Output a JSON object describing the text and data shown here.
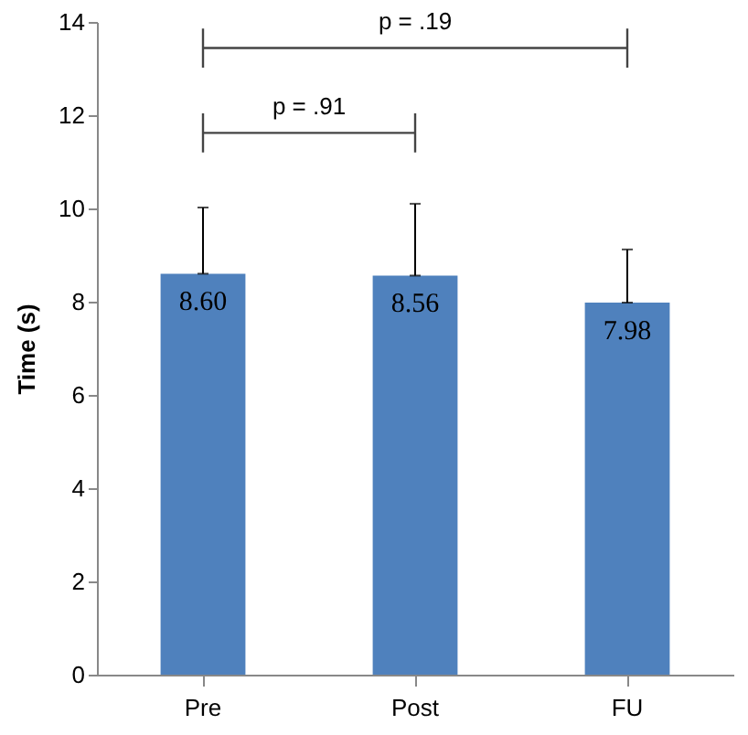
{
  "chart_data": {
    "type": "bar",
    "ylabel": "Time (s)",
    "categories": [
      "Pre",
      "Post",
      "FU"
    ],
    "values": [
      8.6,
      8.56,
      7.98
    ],
    "value_labels": [
      "8.60",
      "8.56",
      "7.98"
    ],
    "errors": [
      [
        8.6,
        10.02
      ],
      [
        8.56,
        10.1
      ],
      [
        7.98,
        9.12
      ]
    ],
    "color": "#4f81bd",
    "ylim": [
      0,
      14
    ],
    "yticks": [
      0,
      2,
      4,
      6,
      8,
      10,
      12,
      14
    ],
    "grid": false,
    "annotations": [
      "p = .91",
      "p = .19"
    ]
  }
}
